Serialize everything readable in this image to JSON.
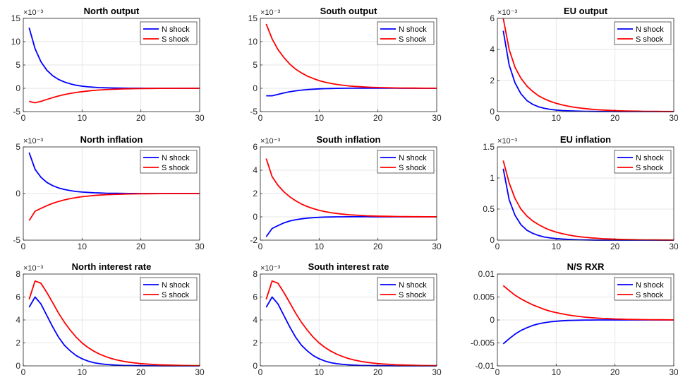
{
  "style": {
    "n_shock_color": "#0000ff",
    "s_shock_color": "#ff0000",
    "grid_color": "#e6e6e6",
    "axis_color": "#262626"
  },
  "legend": {
    "n_label": "N shock",
    "s_label": "S shock",
    "placement": "top-right"
  },
  "chart_data": [
    {
      "type": "line",
      "title": "North output",
      "exponent_label": "×10⁻³",
      "grid": true,
      "xlim": [
        0,
        30
      ],
      "ylim": [
        -5,
        15
      ],
      "xticks": [
        0,
        10,
        20,
        30
      ],
      "xtick_labels": [
        "0",
        "10",
        "20",
        "30"
      ],
      "yticks": [
        -5,
        0,
        5,
        10,
        15
      ],
      "ytick_labels": [
        "-5",
        "0",
        "5",
        "10",
        "15"
      ],
      "x": [
        1,
        2,
        3,
        4,
        5,
        6,
        7,
        8,
        9,
        10,
        11,
        12,
        13,
        14,
        15,
        16,
        17,
        18,
        19,
        20,
        21,
        22,
        23,
        24,
        25,
        26,
        27,
        28,
        29,
        30
      ],
      "series": [
        {
          "name": "N shock",
          "values": [
            13.0,
            8.5,
            5.7,
            3.9,
            2.7,
            1.9,
            1.35,
            0.95,
            0.65,
            0.45,
            0.32,
            0.22,
            0.15,
            0.1,
            0.07,
            0.05,
            0.03,
            0.02,
            0.015,
            0.01,
            0.005,
            0,
            0,
            0,
            0,
            0,
            0,
            0,
            0,
            0
          ]
        },
        {
          "name": "S shock",
          "values": [
            -2.8,
            -3.1,
            -2.8,
            -2.4,
            -2.0,
            -1.65,
            -1.35,
            -1.1,
            -0.9,
            -0.72,
            -0.58,
            -0.46,
            -0.37,
            -0.29,
            -0.23,
            -0.18,
            -0.14,
            -0.11,
            -0.08,
            -0.06,
            -0.04,
            -0.03,
            -0.02,
            -0.015,
            -0.01,
            -0.005,
            0,
            0,
            0,
            0
          ]
        }
      ]
    },
    {
      "type": "line",
      "title": "South output",
      "exponent_label": "×10⁻³",
      "grid": true,
      "xlim": [
        0,
        30
      ],
      "ylim": [
        -5,
        15
      ],
      "xticks": [
        0,
        10,
        20,
        30
      ],
      "xtick_labels": [
        "0",
        "10",
        "20",
        "30"
      ],
      "yticks": [
        -5,
        0,
        5,
        10,
        15
      ],
      "ytick_labels": [
        "-5",
        "0",
        "5",
        "10",
        "15"
      ],
      "x": [
        1,
        2,
        3,
        4,
        5,
        6,
        7,
        8,
        9,
        10,
        11,
        12,
        13,
        14,
        15,
        16,
        17,
        18,
        19,
        20,
        21,
        22,
        23,
        24,
        25,
        26,
        27,
        28,
        29,
        30
      ],
      "series": [
        {
          "name": "N shock",
          "values": [
            -1.6,
            -1.6,
            -1.3,
            -1.0,
            -0.75,
            -0.55,
            -0.4,
            -0.28,
            -0.19,
            -0.12,
            -0.07,
            -0.04,
            -0.02,
            0,
            0.01,
            0.02,
            0.02,
            0.02,
            0.02,
            0.02,
            0.015,
            0.01,
            0.01,
            0.005,
            0,
            0,
            0,
            0,
            0,
            0
          ]
        },
        {
          "name": "S shock",
          "values": [
            13.8,
            10.6,
            8.3,
            6.6,
            5.2,
            4.1,
            3.3,
            2.6,
            2.1,
            1.65,
            1.3,
            1.05,
            0.83,
            0.66,
            0.52,
            0.41,
            0.33,
            0.26,
            0.2,
            0.16,
            0.13,
            0.1,
            0.08,
            0.06,
            0.05,
            0.04,
            0.03,
            0.02,
            0.01,
            0.01
          ]
        }
      ]
    },
    {
      "type": "line",
      "title": "EU output",
      "exponent_label": "×10⁻³",
      "grid": true,
      "xlim": [
        0,
        30
      ],
      "ylim": [
        0,
        6
      ],
      "xticks": [
        0,
        10,
        20,
        30
      ],
      "xtick_labels": [
        "0",
        "10",
        "20",
        "30"
      ],
      "yticks": [
        0,
        2,
        4,
        6
      ],
      "ytick_labels": [
        "0",
        "2",
        "4",
        "6"
      ],
      "x": [
        1,
        2,
        3,
        4,
        5,
        6,
        7,
        8,
        9,
        10,
        11,
        12,
        13,
        14,
        15,
        16,
        17,
        18,
        19,
        20,
        21,
        22,
        23,
        24,
        25,
        26,
        27,
        28,
        29,
        30
      ],
      "series": [
        {
          "name": "N shock",
          "values": [
            5.2,
            3.0,
            1.85,
            1.15,
            0.72,
            0.47,
            0.31,
            0.21,
            0.14,
            0.1,
            0.07,
            0.05,
            0.035,
            0.025,
            0.018,
            0.012,
            0.008,
            0.005,
            0.003,
            0.002,
            0,
            0,
            0,
            0,
            0,
            0,
            0,
            0,
            0,
            0
          ]
        },
        {
          "name": "S shock",
          "values": [
            6.0,
            4.0,
            2.85,
            2.15,
            1.65,
            1.3,
            1.02,
            0.82,
            0.66,
            0.53,
            0.43,
            0.35,
            0.28,
            0.23,
            0.19,
            0.15,
            0.12,
            0.1,
            0.08,
            0.065,
            0.05,
            0.04,
            0.033,
            0.026,
            0.02,
            0.016,
            0.012,
            0.01,
            0.008,
            0.006
          ]
        }
      ]
    },
    {
      "type": "line",
      "title": "North inflation",
      "exponent_label": "×10⁻³",
      "grid": true,
      "xlim": [
        0,
        30
      ],
      "ylim": [
        -5,
        5
      ],
      "xticks": [
        0,
        10,
        20,
        30
      ],
      "xtick_labels": [
        "0",
        "10",
        "20",
        "30"
      ],
      "yticks": [
        -5,
        0,
        5
      ],
      "ytick_labels": [
        "-5",
        "0",
        "5"
      ],
      "x": [
        1,
        2,
        3,
        4,
        5,
        6,
        7,
        8,
        9,
        10,
        11,
        12,
        13,
        14,
        15,
        16,
        17,
        18,
        19,
        20,
        21,
        22,
        23,
        24,
        25,
        26,
        27,
        28,
        29,
        30
      ],
      "series": [
        {
          "name": "N shock",
          "values": [
            4.4,
            2.6,
            1.75,
            1.2,
            0.85,
            0.6,
            0.43,
            0.31,
            0.22,
            0.16,
            0.12,
            0.08,
            0.06,
            0.04,
            0.03,
            0.02,
            0.015,
            0.01,
            0.005,
            0,
            0,
            0,
            0,
            0,
            0,
            0,
            0,
            0,
            0,
            0
          ]
        },
        {
          "name": "S shock",
          "values": [
            -2.9,
            -1.9,
            -1.6,
            -1.3,
            -1.05,
            -0.85,
            -0.68,
            -0.54,
            -0.43,
            -0.34,
            -0.27,
            -0.21,
            -0.17,
            -0.13,
            -0.1,
            -0.08,
            -0.06,
            -0.045,
            -0.035,
            -0.025,
            -0.02,
            -0.015,
            -0.01,
            -0.005,
            0,
            0,
            0,
            0,
            0,
            0
          ]
        }
      ]
    },
    {
      "type": "line",
      "title": "South inflation",
      "exponent_label": "×10⁻³",
      "grid": true,
      "xlim": [
        0,
        30
      ],
      "ylim": [
        -2,
        6
      ],
      "xticks": [
        0,
        10,
        20,
        30
      ],
      "xtick_labels": [
        "0",
        "10",
        "20",
        "30"
      ],
      "yticks": [
        -2,
        0,
        2,
        4,
        6
      ],
      "ytick_labels": [
        "-2",
        "0",
        "2",
        "4",
        "6"
      ],
      "x": [
        1,
        2,
        3,
        4,
        5,
        6,
        7,
        8,
        9,
        10,
        11,
        12,
        13,
        14,
        15,
        16,
        17,
        18,
        19,
        20,
        21,
        22,
        23,
        24,
        25,
        26,
        27,
        28,
        29,
        30
      ],
      "series": [
        {
          "name": "N shock",
          "values": [
            -1.7,
            -1.0,
            -0.75,
            -0.52,
            -0.36,
            -0.25,
            -0.17,
            -0.11,
            -0.07,
            -0.04,
            -0.02,
            -0.01,
            0,
            0,
            0.005,
            0.005,
            0.005,
            0.005,
            0,
            0,
            0,
            0,
            0,
            0,
            0,
            0,
            0,
            0,
            0,
            0
          ]
        },
        {
          "name": "S shock",
          "values": [
            5.0,
            3.45,
            2.7,
            2.15,
            1.72,
            1.38,
            1.1,
            0.88,
            0.7,
            0.56,
            0.45,
            0.36,
            0.29,
            0.23,
            0.18,
            0.15,
            0.12,
            0.09,
            0.07,
            0.06,
            0.05,
            0.04,
            0.03,
            0.025,
            0.02,
            0.015,
            0.01,
            0.008,
            0.006,
            0.005
          ]
        }
      ]
    },
    {
      "type": "line",
      "title": "EU inflation",
      "exponent_label": "×10⁻³",
      "grid": true,
      "xlim": [
        0,
        30
      ],
      "ylim": [
        0,
        1.5
      ],
      "xticks": [
        0,
        10,
        20,
        30
      ],
      "xtick_labels": [
        "0",
        "10",
        "20",
        "30"
      ],
      "yticks": [
        0,
        0.5,
        1,
        1.5
      ],
      "ytick_labels": [
        "0",
        "0.5",
        "1",
        "1.5"
      ],
      "x": [
        1,
        2,
        3,
        4,
        5,
        6,
        7,
        8,
        9,
        10,
        11,
        12,
        13,
        14,
        15,
        16,
        17,
        18,
        19,
        20,
        21,
        22,
        23,
        24,
        25,
        26,
        27,
        28,
        29,
        30
      ],
      "series": [
        {
          "name": "N shock",
          "values": [
            1.15,
            0.65,
            0.4,
            0.25,
            0.16,
            0.11,
            0.075,
            0.05,
            0.035,
            0.025,
            0.018,
            0.012,
            0.008,
            0.005,
            0.003,
            0.002,
            0,
            0,
            0,
            0,
            0,
            0,
            0,
            0,
            0,
            0,
            0,
            0,
            0,
            0
          ]
        },
        {
          "name": "S shock",
          "values": [
            1.28,
            0.92,
            0.67,
            0.5,
            0.39,
            0.31,
            0.25,
            0.2,
            0.16,
            0.13,
            0.105,
            0.085,
            0.068,
            0.055,
            0.045,
            0.036,
            0.029,
            0.023,
            0.019,
            0.015,
            0.012,
            0.01,
            0.008,
            0.006,
            0.005,
            0.004,
            0.003,
            0.002,
            0.002,
            0.001
          ]
        }
      ]
    },
    {
      "type": "line",
      "title": "North interest rate",
      "exponent_label": "×10⁻³",
      "grid": true,
      "xlim": [
        0,
        30
      ],
      "ylim": [
        0,
        8
      ],
      "xticks": [
        0,
        10,
        20,
        30
      ],
      "xtick_labels": [
        "0",
        "10",
        "20",
        "30"
      ],
      "yticks": [
        0,
        2,
        4,
        6,
        8
      ],
      "ytick_labels": [
        "0",
        "2",
        "4",
        "6",
        "8"
      ],
      "x": [
        1,
        2,
        3,
        4,
        5,
        6,
        7,
        8,
        9,
        10,
        11,
        12,
        13,
        14,
        15,
        16,
        17,
        18,
        19,
        20,
        21,
        22,
        23,
        24,
        25,
        26,
        27,
        28,
        29,
        30
      ],
      "series": [
        {
          "name": "N shock",
          "values": [
            5.1,
            6.0,
            5.4,
            4.4,
            3.4,
            2.5,
            1.8,
            1.3,
            0.9,
            0.62,
            0.42,
            0.28,
            0.19,
            0.13,
            0.09,
            0.06,
            0.04,
            0.03,
            0.02,
            0.015,
            0.01,
            0.005,
            0,
            0,
            0,
            0,
            0,
            0,
            0,
            0
          ]
        },
        {
          "name": "S shock",
          "values": [
            5.8,
            7.4,
            7.2,
            6.4,
            5.5,
            4.6,
            3.8,
            3.1,
            2.5,
            2.0,
            1.6,
            1.28,
            1.02,
            0.81,
            0.64,
            0.51,
            0.4,
            0.32,
            0.25,
            0.2,
            0.16,
            0.13,
            0.1,
            0.08,
            0.065,
            0.05,
            0.04,
            0.03,
            0.025,
            0.02
          ]
        }
      ]
    },
    {
      "type": "line",
      "title": "South interest rate",
      "exponent_label": "×10⁻³",
      "grid": true,
      "xlim": [
        0,
        30
      ],
      "ylim": [
        0,
        8
      ],
      "xticks": [
        0,
        10,
        20,
        30
      ],
      "xtick_labels": [
        "0",
        "10",
        "20",
        "30"
      ],
      "yticks": [
        0,
        2,
        4,
        6,
        8
      ],
      "ytick_labels": [
        "0",
        "2",
        "4",
        "6",
        "8"
      ],
      "x": [
        1,
        2,
        3,
        4,
        5,
        6,
        7,
        8,
        9,
        10,
        11,
        12,
        13,
        14,
        15,
        16,
        17,
        18,
        19,
        20,
        21,
        22,
        23,
        24,
        25,
        26,
        27,
        28,
        29,
        30
      ],
      "series": [
        {
          "name": "N shock",
          "values": [
            5.1,
            6.0,
            5.4,
            4.4,
            3.4,
            2.5,
            1.8,
            1.3,
            0.9,
            0.62,
            0.42,
            0.28,
            0.19,
            0.13,
            0.09,
            0.06,
            0.04,
            0.03,
            0.02,
            0.015,
            0.01,
            0.005,
            0,
            0,
            0,
            0,
            0,
            0,
            0,
            0
          ]
        },
        {
          "name": "S shock",
          "values": [
            5.8,
            7.4,
            7.2,
            6.4,
            5.5,
            4.6,
            3.8,
            3.1,
            2.5,
            2.0,
            1.6,
            1.28,
            1.02,
            0.81,
            0.64,
            0.51,
            0.4,
            0.32,
            0.25,
            0.2,
            0.16,
            0.13,
            0.1,
            0.08,
            0.065,
            0.05,
            0.04,
            0.03,
            0.025,
            0.02
          ]
        }
      ]
    },
    {
      "type": "line",
      "title": "N/S RXR",
      "exponent_label": "",
      "grid": true,
      "xlim": [
        0,
        30
      ],
      "ylim": [
        -0.01,
        0.01
      ],
      "xticks": [
        0,
        10,
        20,
        30
      ],
      "xtick_labels": [
        "0",
        "10",
        "20",
        "30"
      ],
      "yticks": [
        -0.01,
        -0.005,
        0,
        0.005,
        0.01
      ],
      "ytick_labels": [
        "-0.01",
        "-0.005",
        "0",
        "0.005",
        "0.01"
      ],
      "x": [
        1,
        2,
        3,
        4,
        5,
        6,
        7,
        8,
        9,
        10,
        11,
        12,
        13,
        14,
        15,
        16,
        17,
        18,
        19,
        20,
        21,
        22,
        23,
        24,
        25,
        26,
        27,
        28,
        29,
        30
      ],
      "series": [
        {
          "name": "N shock",
          "values": [
            -0.0052,
            -0.0041,
            -0.0031,
            -0.0023,
            -0.0017,
            -0.0012,
            -0.00085,
            -0.0006,
            -0.0004,
            -0.00027,
            -0.00018,
            -0.00011,
            -7e-05,
            -4e-05,
            -2e-05,
            -1e-05,
            0,
            0,
            0,
            0,
            0,
            0,
            0,
            0,
            0,
            0,
            0,
            0,
            0,
            0
          ]
        },
        {
          "name": "S shock",
          "values": [
            0.0075,
            0.0064,
            0.0054,
            0.0046,
            0.0039,
            0.0033,
            0.0028,
            0.0023,
            0.0019,
            0.0016,
            0.00135,
            0.0011,
            0.0009,
            0.00075,
            0.0006,
            0.0005,
            0.0004,
            0.00033,
            0.00027,
            0.00022,
            0.00018,
            0.00014,
            0.00011,
            9e-05,
            7e-05,
            6e-05,
            5e-05,
            4e-05,
            3e-05,
            2e-05
          ]
        }
      ]
    }
  ]
}
